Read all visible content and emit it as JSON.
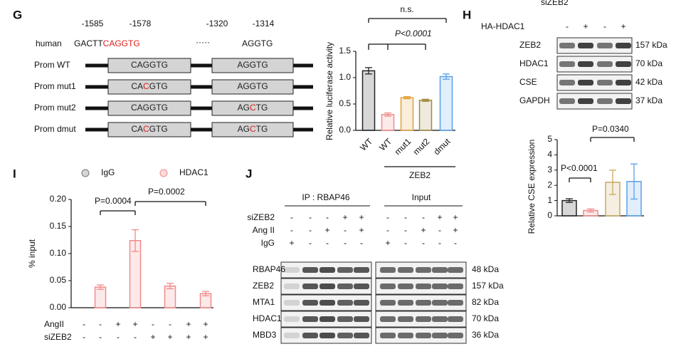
{
  "promoter": {
    "label": "G",
    "positions": [
      "-1585",
      "-1578",
      "-1320",
      "-1314"
    ],
    "species": "human",
    "seq_left": "GACTT",
    "seq_site1": "CAGGTG",
    "seq_gap": "·····",
    "seq_site2": "AGGTG",
    "constructs": [
      {
        "name": "Prom WT",
        "box1": [
          {
            "text": "CAGGTG",
            "color": "#222222"
          }
        ],
        "box2": [
          {
            "text": "AGGTG",
            "color": "#222222"
          }
        ]
      },
      {
        "name": "Prom mut1",
        "box1": [
          {
            "text": "CA",
            "color": "#222222"
          },
          {
            "text": "C",
            "color": "#e02020"
          },
          {
            "text": "GTG",
            "color": "#222222"
          }
        ],
        "box2": [
          {
            "text": "AGGTG",
            "color": "#222222"
          }
        ]
      },
      {
        "name": "Prom mut2",
        "box1": [
          {
            "text": "CAGGTG",
            "color": "#222222"
          }
        ],
        "box2": [
          {
            "text": "AG",
            "color": "#222222"
          },
          {
            "text": "C",
            "color": "#e02020"
          },
          {
            "text": "TG",
            "color": "#222222"
          }
        ]
      },
      {
        "name": "Prom dmut",
        "box1": [
          {
            "text": "CA",
            "color": "#222222"
          },
          {
            "text": "C",
            "color": "#e02020"
          },
          {
            "text": "GTG",
            "color": "#222222"
          }
        ],
        "box2": [
          {
            "text": "AG",
            "color": "#222222"
          },
          {
            "text": "C",
            "color": "#e02020"
          },
          {
            "text": "TG",
            "color": "#222222"
          }
        ]
      }
    ]
  },
  "blot_h": {
    "label": "H",
    "top_label": "siZEB2",
    "condition": "HA-HDAC1",
    "signs": [
      "-",
      "+",
      "-",
      "+"
    ],
    "rows": [
      {
        "name": "ZEB2",
        "size": "157 kDa"
      },
      {
        "name": "HDAC1",
        "size": "70 kDa"
      },
      {
        "name": "CSE",
        "size": "42 kDa"
      },
      {
        "name": "GAPDH",
        "size": "37 kDa"
      }
    ]
  },
  "blot_j": {
    "label": "J",
    "ip_title": "IP : RBAP46",
    "input_title": "Input",
    "conditions": [
      {
        "name": "siZEB2",
        "signs": [
          "-",
          "-",
          "-",
          "+",
          "+",
          "-",
          "-",
          "-",
          "+",
          "+"
        ]
      },
      {
        "name": "Ang II",
        "signs": [
          "-",
          "-",
          "+",
          "-",
          "+",
          "-",
          "-",
          "+",
          "-",
          "+"
        ]
      },
      {
        "name": "IgG",
        "signs": [
          "+",
          "-",
          "-",
          "-",
          "-",
          "+",
          "-",
          "-",
          "-",
          "-"
        ]
      }
    ],
    "rows": [
      {
        "name": "RBAP46",
        "size": "48 kDa"
      },
      {
        "name": "ZEB2",
        "size": "157 kDa"
      },
      {
        "name": "MTA1",
        "size": "82 kDa"
      },
      {
        "name": "HDAC1",
        "size": "70 kDa"
      },
      {
        "name": "MBD3",
        "size": "36 kDa"
      }
    ]
  },
  "chart_data": [
    {
      "type": "bar",
      "ylabel": "Relative luciferase activity",
      "categories": [
        "WT",
        "WT",
        "mut1",
        "mut2",
        "dmut"
      ],
      "values": [
        1.13,
        0.3,
        0.62,
        0.57,
        1.02
      ],
      "errors": [
        0.06,
        0.03,
        0.02,
        0.02,
        0.05
      ],
      "colors": [
        "#222222",
        "#f08a8a",
        "#e2a23a",
        "#a08a40",
        "#5aa0e8"
      ],
      "ylim": [
        0,
        1.5
      ],
      "yticks": [
        {
          "value": 0,
          "label": "0.0"
        },
        {
          "value": 0.5,
          "label": "0.5"
        },
        {
          "value": 1,
          "label": "1.0"
        },
        {
          "value": 1.5,
          "label": "1.5"
        }
      ],
      "group_label": "ZEB2",
      "annotations": [
        "n.s.",
        "P<0.0001"
      ]
    },
    {
      "type": "bar",
      "ylabel": "Relative CSE expression",
      "categories": [
        null,
        null,
        null,
        null
      ],
      "values": [
        1.0,
        0.35,
        2.2,
        2.25
      ],
      "errors": [
        0.12,
        0.1,
        0.8,
        1.15
      ],
      "colors": [
        "#222222",
        "#f08a8a",
        "#c8a860",
        "#5aa0e8"
      ],
      "ylim": [
        0,
        5
      ],
      "yticks": [
        0,
        1,
        2,
        3,
        4,
        5
      ],
      "annotations": [
        "P<0.0001",
        "P=0.0340"
      ]
    },
    {
      "type": "grouped-bar",
      "label": "I",
      "ylabel": "% input",
      "categories": [
        null,
        null,
        null,
        null
      ],
      "series": [
        {
          "name": "IgG",
          "color": "#777777",
          "values": [
            0.0,
            0.0,
            0.0,
            0.0
          ]
        },
        {
          "name": "HDAC1",
          "color": "#f08a8a",
          "values": [
            0.038,
            0.124,
            0.04,
            0.026
          ],
          "errors": [
            0.004,
            0.02,
            0.005,
            0.004
          ]
        }
      ],
      "ylim": [
        0,
        0.2
      ],
      "yticks": [
        {
          "value": 0,
          "label": "0.00"
        },
        {
          "value": 0.05,
          "label": "0.05"
        },
        {
          "value": 0.1,
          "label": "0.10"
        },
        {
          "value": 0.15,
          "label": "0.15"
        },
        {
          "value": 0.2,
          "label": "0.20"
        }
      ],
      "conditions": [
        {
          "name": "AngII",
          "signs": [
            "-",
            "-",
            "+",
            "+",
            "-",
            "-",
            "+",
            "+"
          ]
        },
        {
          "name": "siZEB2",
          "signs": [
            "-",
            "-",
            "-",
            "-",
            "+",
            "+",
            "+",
            "+"
          ]
        }
      ],
      "annotations": [
        "P=0.0004",
        "P=0.0002"
      ]
    }
  ]
}
